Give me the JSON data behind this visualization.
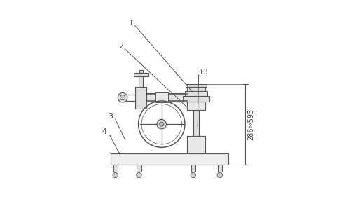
{
  "bg_color": "#ffffff",
  "line_color": "#555555",
  "label_color": "#444444",
  "fig_width": 4.84,
  "fig_height": 2.84,
  "dpi": 100,
  "dim_text": "286∾593"
}
